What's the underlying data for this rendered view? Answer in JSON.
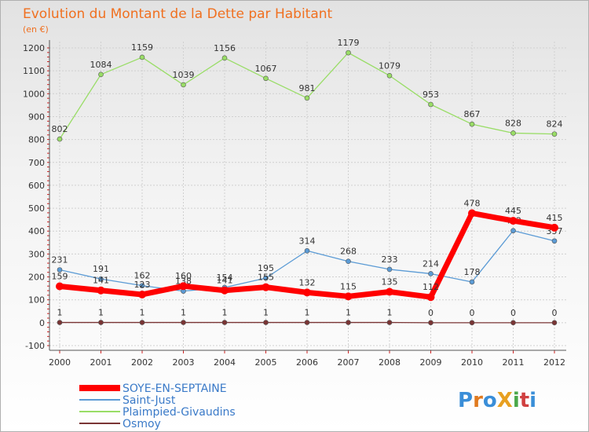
{
  "chart_data": {
    "type": "line",
    "title": "Evolution du Montant de la Dette par Habitant",
    "subtitle": "(en €)",
    "categories": [
      "2000",
      "2001",
      "2002",
      "2003",
      "2004",
      "2005",
      "2006",
      "2007",
      "2008",
      "2009",
      "2010",
      "2011",
      "2012"
    ],
    "y_ticks": [
      "-100",
      "0",
      "100",
      "200",
      "300",
      "400",
      "500",
      "600",
      "700",
      "800",
      "900",
      "1000",
      "1100",
      "1200"
    ],
    "ylim": [
      -100,
      1200
    ],
    "grid": true,
    "series": [
      {
        "name": "SOYE-EN-SEPTAINE",
        "color": "#ff0000",
        "values": [
          159,
          141,
          123,
          160,
          141,
          155,
          132,
          115,
          135,
          112,
          478,
          445,
          415
        ],
        "labels": [
          "159",
          "141",
          "123",
          "160",
          "141",
          "155",
          "132",
          "115",
          "135",
          "112",
          "478",
          "445",
          "415"
        ]
      },
      {
        "name": "Saint-Just",
        "color": "#5b9bd5",
        "values": [
          231,
          191,
          162,
          138,
          154,
          195,
          314,
          268,
          233,
          214,
          178,
          402,
          357
        ],
        "labels": [
          "231",
          "191",
          "162",
          "138",
          "154",
          "195",
          "314",
          "268",
          "233",
          "214",
          "178",
          "402",
          "357"
        ]
      },
      {
        "name": "Plaimpied-Givaudins",
        "color": "#99dd66",
        "values": [
          802,
          1084,
          1159,
          1039,
          1156,
          1067,
          981,
          1179,
          1079,
          953,
          867,
          828,
          824
        ],
        "labels": [
          "802",
          "1084",
          "1159",
          "1039",
          "1156",
          "1067",
          "981",
          "1179",
          "1079",
          "953",
          "867",
          "828",
          "824"
        ]
      },
      {
        "name": "Osmoy",
        "color": "#7a3535",
        "values": [
          1,
          1,
          1,
          1,
          1,
          1,
          1,
          1,
          1,
          0,
          0,
          0,
          0
        ],
        "labels": [
          "1",
          "1",
          "1",
          "1",
          "1",
          "1",
          "1",
          "1",
          "1",
          "0",
          "0",
          "0",
          "0"
        ]
      }
    ],
    "legend": [
      "SOYE-EN-SEPTAINE",
      "Saint-Just",
      "Plaimpied-Givaudins",
      "Osmoy"
    ],
    "legend_position": "bottom-left"
  },
  "logo": {
    "text": "ProXiti"
  }
}
